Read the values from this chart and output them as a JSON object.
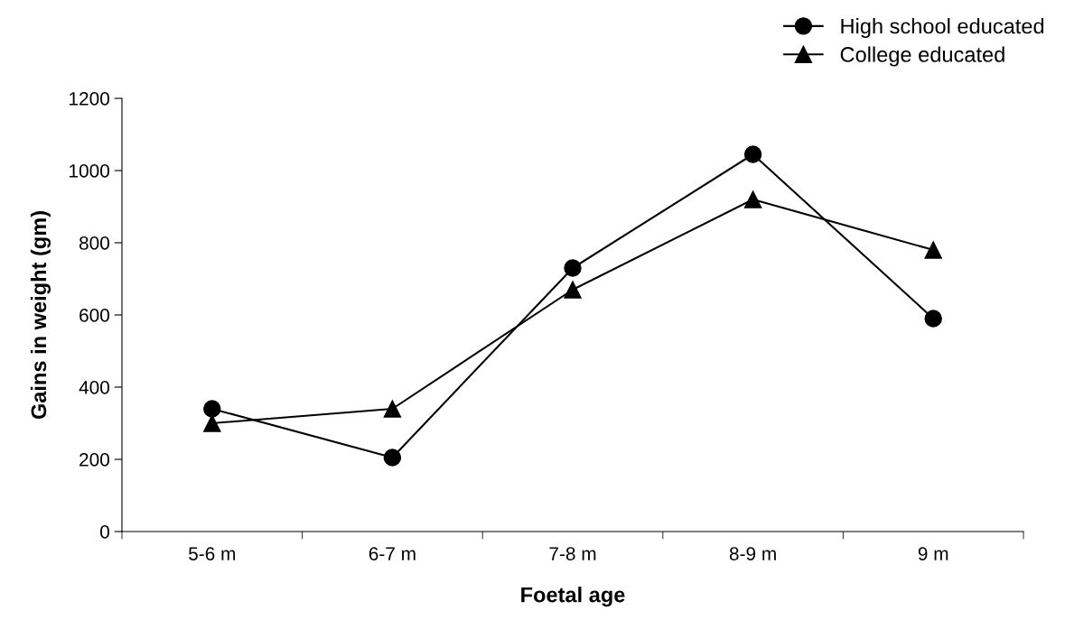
{
  "chart_data": {
    "type": "line",
    "xlabel": "Foetal age",
    "ylabel": "Gains in weight (gm)",
    "categories": [
      "5-6 m",
      "6-7 m",
      "7-8 m",
      "8-9 m",
      "9 m"
    ],
    "series": [
      {
        "name": "High school educated",
        "color": "#000000",
        "marker": "circle",
        "values": [
          340,
          205,
          730,
          1045,
          590
        ]
      },
      {
        "name": "College educated",
        "color": "#000000",
        "marker": "triangle",
        "values": [
          300,
          340,
          670,
          920,
          780
        ]
      }
    ],
    "ylim": [
      0,
      1200
    ],
    "yticks": [
      0,
      200,
      400,
      600,
      800,
      1000,
      1200
    ],
    "grid": false,
    "legend": "top right",
    "line_style": "solid"
  }
}
